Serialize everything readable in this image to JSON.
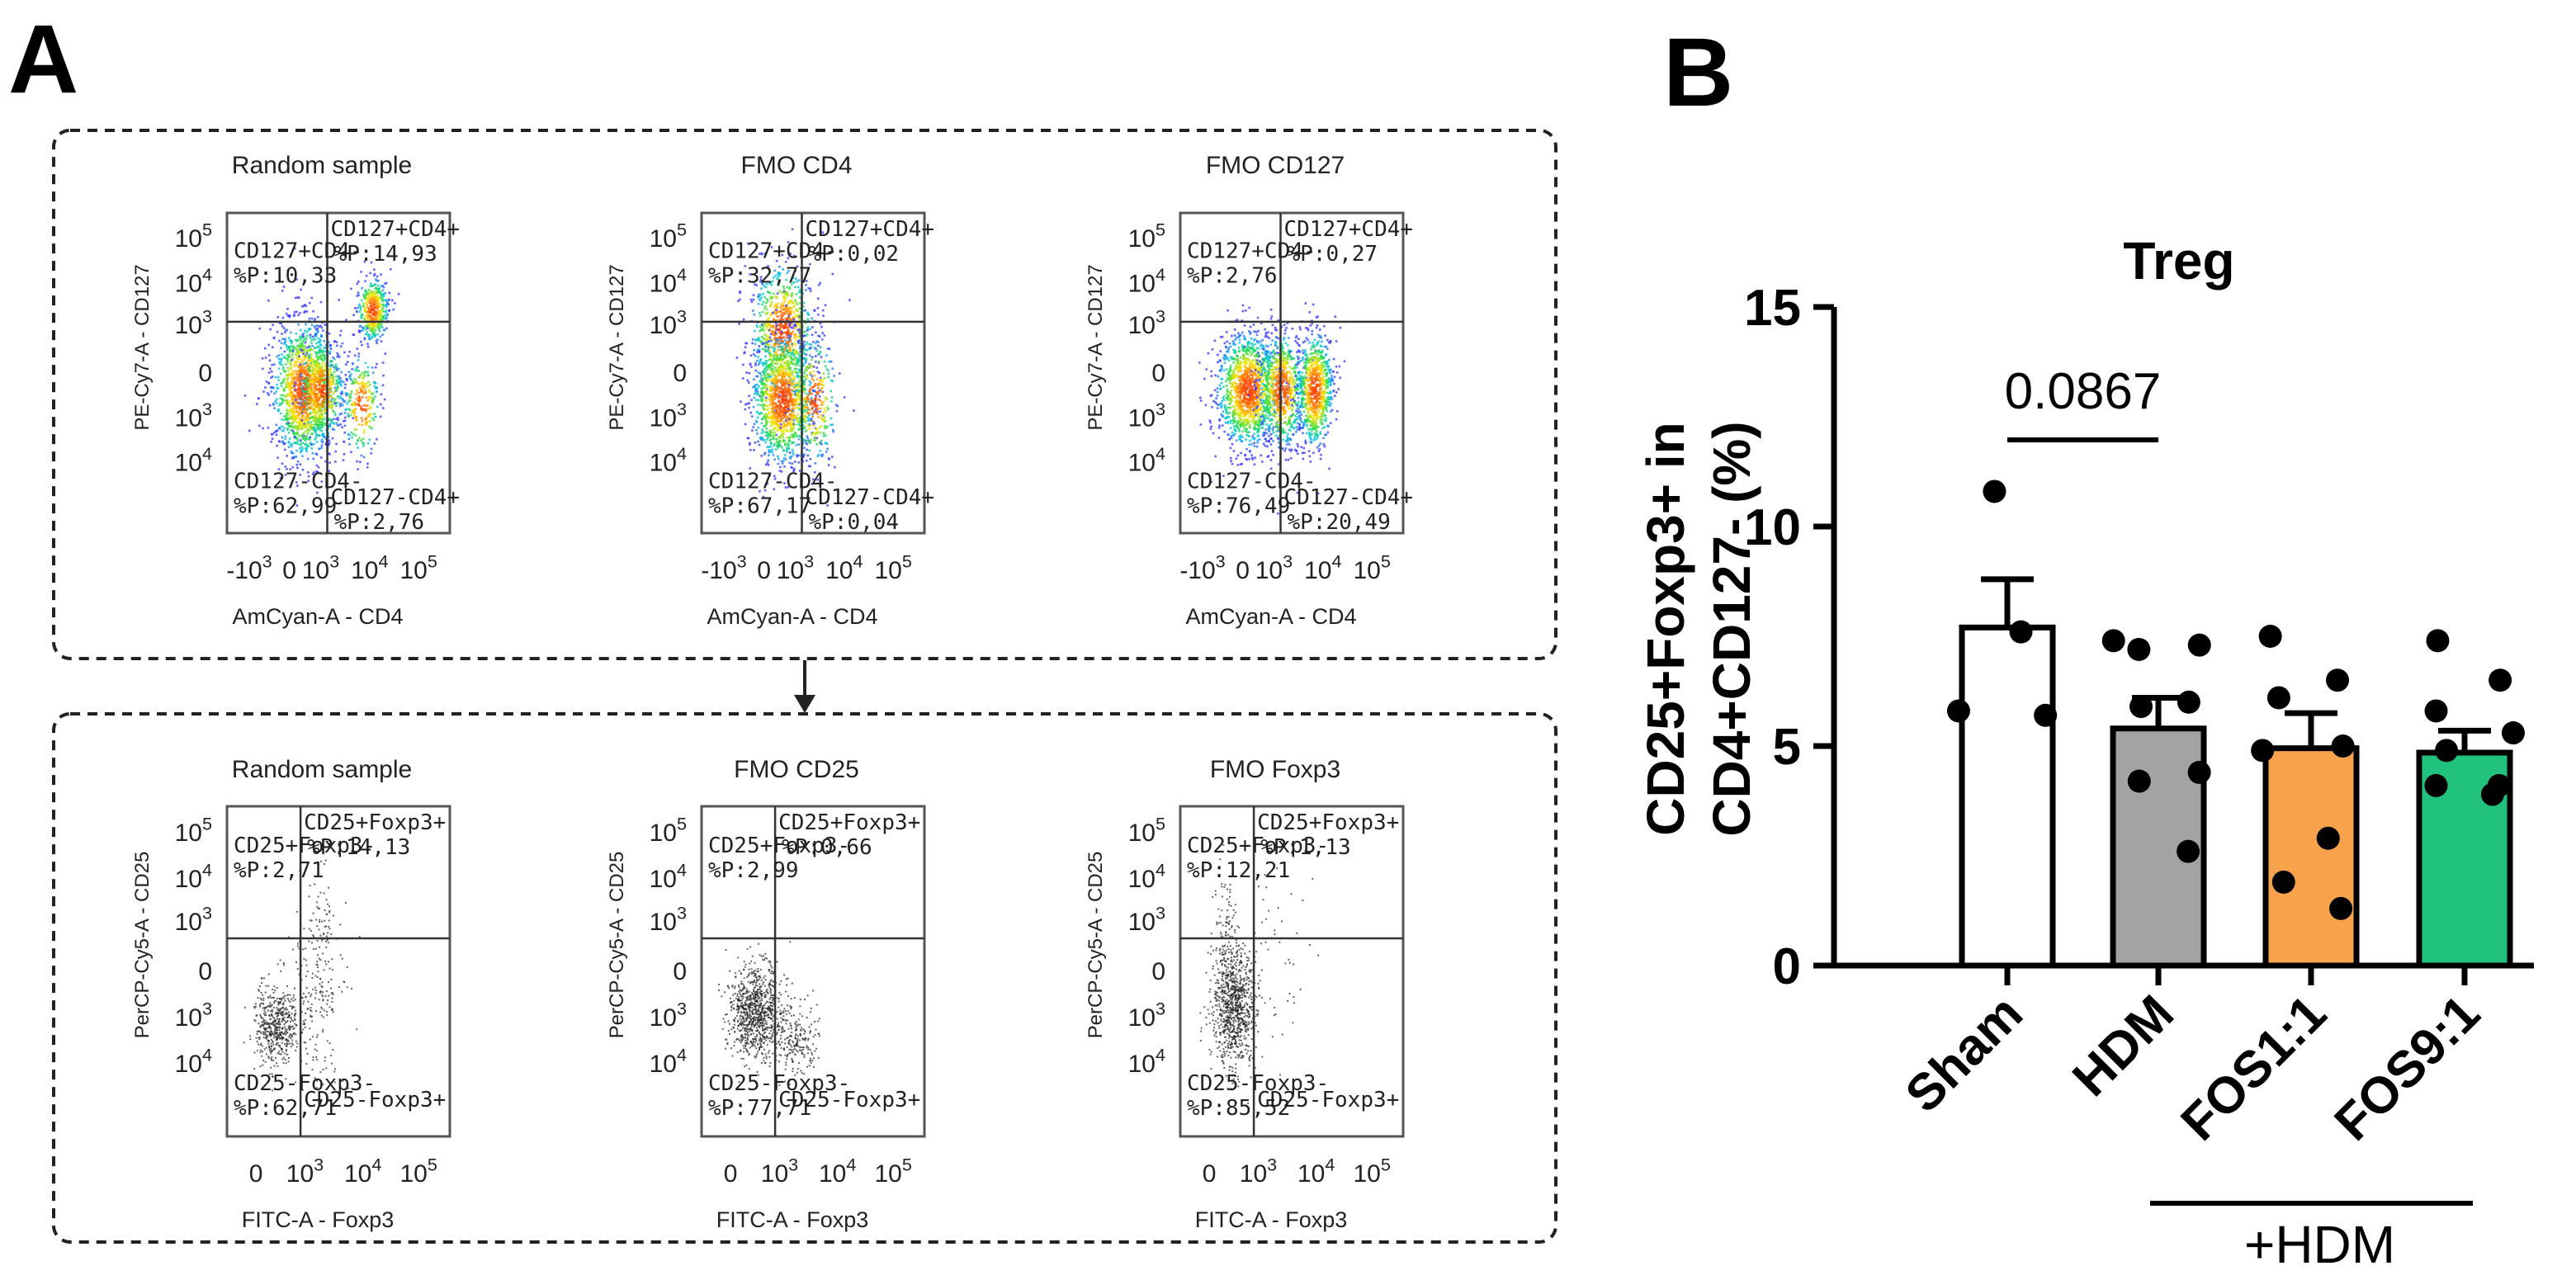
{
  "panel_a": {
    "letter": "A",
    "top_row": {
      "y_axis": "PE-Cy7-A - CD127",
      "x_axis": "AmCyan-A - CD4",
      "plots": [
        {
          "title": "Random sample",
          "q_ul": [
            "CD127+CD4-",
            "%P:10,33"
          ],
          "q_ur": [
            "CD127+CD4+",
            "%P:14,93"
          ],
          "q_ll": [
            "CD127-CD4-",
            "%P:62,99"
          ],
          "q_lr": [
            "CD127-CD4+",
            "%P:2,76"
          ]
        },
        {
          "title": "FMO CD4",
          "q_ul": [
            "CD127+CD4-",
            "%P:32,77"
          ],
          "q_ur": [
            "CD127+CD4+",
            "%P:0,02"
          ],
          "q_ll": [
            "CD127-CD4-",
            "%P:67,17"
          ],
          "q_lr": [
            "CD127-CD4+",
            "%P:0,04"
          ]
        },
        {
          "title": "FMO CD127",
          "q_ul": [
            "CD127+CD4-",
            "%P:2,76"
          ],
          "q_ur": [
            "CD127+CD4+",
            "%P:0,27"
          ],
          "q_ll": [
            "CD127-CD4-",
            "%P:76,49"
          ],
          "q_lr": [
            "CD127-CD4+",
            "%P:20,49"
          ]
        }
      ]
    },
    "bottom_row": {
      "y_axis": "PerCP-Cy5-A - CD25",
      "x_axis": "FITC-A - Foxp3",
      "plots": [
        {
          "title": "Random sample",
          "q_ul": [
            "CD25+Foxp3-",
            "%P:2,71"
          ],
          "q_ur": [
            "CD25+Foxp3+",
            "%P:14,13"
          ],
          "q_ll": [
            "CD25-Foxp3-",
            "%P:62,71"
          ],
          "q_lr": [
            "CD25-Foxp3+",
            ""
          ]
        },
        {
          "title": "FMO CD25",
          "q_ul": [
            "CD25+Foxp3-",
            "%P:2,99"
          ],
          "q_ur": [
            "CD25+Foxp3+",
            "%P:0,66"
          ],
          "q_ll": [
            "CD25-Foxp3-",
            "%P:77,71"
          ],
          "q_lr": [
            "CD25-Foxp3+",
            ""
          ]
        },
        {
          "title": "FMO Foxp3",
          "q_ul": [
            "CD25+Foxp3-",
            "%P:12,21"
          ],
          "q_ur": [
            "CD25+Foxp3+",
            "%P:1,13"
          ],
          "q_ll": [
            "CD25-Foxp3-",
            "%P:85,52"
          ],
          "q_lr": [
            "CD25-Foxp3+",
            ""
          ]
        }
      ]
    },
    "y_ticks": [
      {
        "b": "10",
        "e": "5"
      },
      {
        "b": "10",
        "e": "4"
      },
      {
        "b": "10",
        "e": "3"
      },
      {
        "b": "0",
        "e": ""
      },
      {
        "b": "10",
        "e": "3"
      },
      {
        "b": "10",
        "e": "4"
      }
    ],
    "x_ticks_top": [
      {
        "b": "-10",
        "e": "3"
      },
      {
        "b": "0",
        "e": ""
      },
      {
        "b": "10",
        "e": "3"
      },
      {
        "b": "10",
        "e": "4"
      },
      {
        "b": "10",
        "e": "5"
      }
    ],
    "x_ticks_bottom": [
      {
        "b": "0",
        "e": ""
      },
      {
        "b": "10",
        "e": "3"
      },
      {
        "b": "10",
        "e": "4"
      },
      {
        "b": "10",
        "e": "5"
      }
    ]
  },
  "panel_b": {
    "letter": "B"
  },
  "chart_data": {
    "type": "bar",
    "title": "Treg",
    "ylabel_lines": [
      "CD25+Foxp3+ in",
      "CD4+CD127- (%)"
    ],
    "xlabel": "",
    "categories": [
      "Sham",
      "HDM",
      "FOS1:1",
      "FOS9:1"
    ],
    "values": [
      7.7,
      5.4,
      4.95,
      4.85
    ],
    "sem": [
      1.1,
      0.7,
      0.8,
      0.5
    ],
    "colors": [
      "#ffffff",
      "#a3a3a3",
      "#f7a34b",
      "#21c27d"
    ],
    "points": [
      [
        10.8,
        7.6,
        5.8,
        5.7
      ],
      [
        7.4,
        7.3,
        7.2,
        6.0,
        5.9,
        4.4,
        4.2,
        2.6
      ],
      [
        7.5,
        6.5,
        6.1,
        5.0,
        4.9,
        2.9,
        1.9,
        1.3
      ],
      [
        7.4,
        6.5,
        5.8,
        5.3,
        4.9,
        4.1,
        4.1,
        3.9
      ]
    ],
    "ylim": [
      0,
      15
    ],
    "y_ticks": [
      0,
      5,
      10,
      15
    ],
    "significance": {
      "from": "Sham",
      "to": "HDM",
      "label": "0.0867"
    },
    "group_bracket": {
      "label": "+HDM",
      "covers": [
        "HDM",
        "FOS1:1",
        "FOS9:1"
      ]
    },
    "grid": false,
    "legend": "none"
  }
}
